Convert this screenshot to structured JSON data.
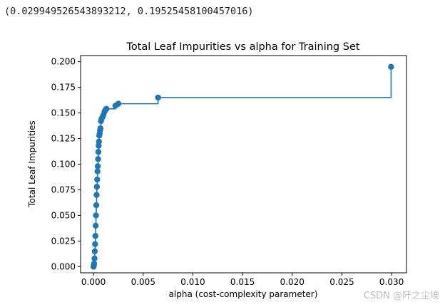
{
  "output_text": "(0.029949526543893212, 0.19525458100457016)",
  "watermark": "CSDN @阡之尘埃",
  "colors": {
    "series": "#1f77b4",
    "axes": "#000000",
    "text": "#222222"
  },
  "chart_data": {
    "type": "line",
    "drawstyle": "steps-post",
    "marker": "circle",
    "title": "Total Leaf Impurities vs alpha for Training Set",
    "xlabel": "alpha (cost-complexity parameter)",
    "ylabel": "Total Leaf Impurities",
    "xlim": [
      -0.0013,
      0.0315
    ],
    "ylim": [
      -0.006,
      0.206
    ],
    "xticks": [
      0.0,
      0.005,
      0.01,
      0.015,
      0.02,
      0.025,
      0.03
    ],
    "xtick_labels": [
      "0.000",
      "0.005",
      "0.010",
      "0.015",
      "0.020",
      "0.025",
      "0.030"
    ],
    "yticks": [
      0.0,
      0.025,
      0.05,
      0.075,
      0.1,
      0.125,
      0.15,
      0.175,
      0.2
    ],
    "ytick_labels": [
      "0.000",
      "0.025",
      "0.050",
      "0.075",
      "0.100",
      "0.125",
      "0.150",
      "0.175",
      "0.200"
    ],
    "grid": false,
    "series": [
      {
        "x": [
          0.0,
          3e-05,
          6e-05,
          0.0001,
          0.00013,
          0.00016,
          0.00019,
          0.00022,
          0.00025,
          0.00028,
          0.00031,
          0.00034,
          0.00037,
          0.0004,
          0.00043,
          0.00046,
          0.00049,
          0.00052,
          0.00055,
          0.00058,
          0.00062,
          0.00066,
          0.0007,
          0.00075,
          0.0008,
          0.0009,
          0.001,
          0.0011,
          0.0012,
          0.0013,
          0.0022,
          0.0025,
          0.0065,
          0.02995
        ],
        "y": [
          0.0,
          0.001,
          0.003,
          0.008,
          0.015,
          0.022,
          0.03,
          0.04,
          0.05,
          0.06,
          0.07,
          0.078,
          0.085,
          0.093,
          0.098,
          0.105,
          0.112,
          0.118,
          0.122,
          0.128,
          0.13,
          0.133,
          0.135,
          0.142,
          0.144,
          0.146,
          0.148,
          0.151,
          0.153,
          0.154,
          0.157,
          0.159,
          0.165,
          0.195
        ]
      }
    ]
  }
}
